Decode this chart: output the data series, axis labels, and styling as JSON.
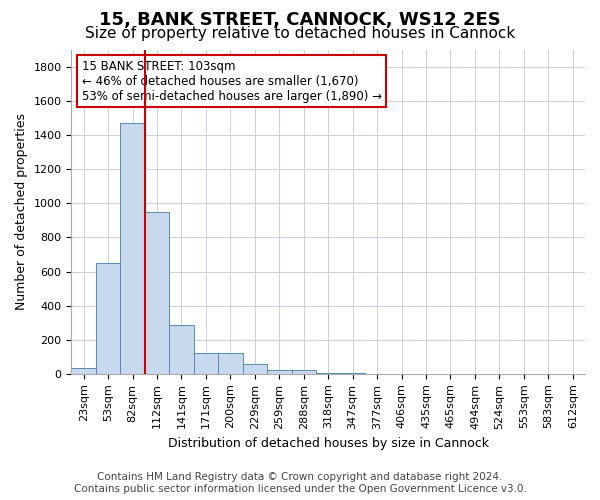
{
  "title": "15, BANK STREET, CANNOCK, WS12 2ES",
  "subtitle": "Size of property relative to detached houses in Cannock",
  "xlabel": "Distribution of detached houses by size in Cannock",
  "ylabel": "Number of detached properties",
  "bins": [
    "23sqm",
    "53sqm",
    "82sqm",
    "112sqm",
    "141sqm",
    "171sqm",
    "200sqm",
    "229sqm",
    "259sqm",
    "288sqm",
    "318sqm",
    "347sqm",
    "377sqm",
    "406sqm",
    "435sqm",
    "465sqm",
    "494sqm",
    "524sqm",
    "553sqm",
    "583sqm",
    "612sqm"
  ],
  "values": [
    35,
    650,
    1470,
    950,
    285,
    120,
    120,
    60,
    25,
    25,
    5,
    5,
    0,
    0,
    0,
    0,
    0,
    0,
    0,
    0,
    0
  ],
  "bar_color": "#c9d9ed",
  "bar_edge_color": "#5a8ab0",
  "vline_x_index": 2,
  "vline_color": "#cc0000",
  "annotation_line1": "15 BANK STREET: 103sqm",
  "annotation_line2": "← 46% of detached houses are smaller (1,670)",
  "annotation_line3": "53% of semi-detached houses are larger (1,890) →",
  "annotation_box_color": "white",
  "annotation_box_edge": "#cc0000",
  "ylim": [
    0,
    1900
  ],
  "yticks": [
    0,
    200,
    400,
    600,
    800,
    1000,
    1200,
    1400,
    1600,
    1800
  ],
  "footer_line1": "Contains HM Land Registry data © Crown copyright and database right 2024.",
  "footer_line2": "Contains public sector information licensed under the Open Government Licence v3.0.",
  "title_fontsize": 13,
  "subtitle_fontsize": 11,
  "axis_label_fontsize": 9,
  "tick_fontsize": 8,
  "annotation_fontsize": 8.5,
  "footer_fontsize": 7.5
}
